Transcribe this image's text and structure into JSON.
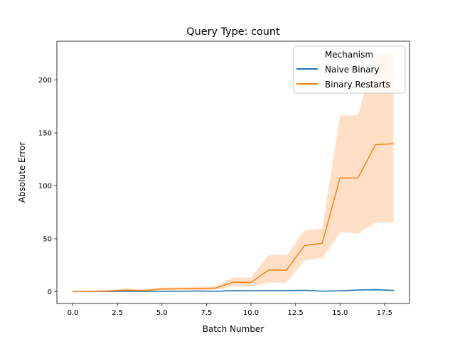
{
  "chart_data": {
    "type": "line",
    "title": "Query Type: count",
    "xlabel": "Batch Number",
    "ylabel": "Absolute Error",
    "xlim": [
      -0.9,
      18.9
    ],
    "ylim": [
      -11.2,
      236.6
    ],
    "x_ticks": [
      0,
      2.5,
      5,
      7.5,
      10,
      12.5,
      15,
      17.5
    ],
    "x_tick_labels": [
      "0.0",
      "2.5",
      "5.0",
      "7.5",
      "10.0",
      "12.5",
      "15.0",
      "17.5"
    ],
    "y_ticks": [
      0,
      50,
      100,
      150,
      200
    ],
    "y_tick_labels": [
      "0",
      "50",
      "100",
      "150",
      "200"
    ],
    "grid": false,
    "legend": {
      "title": "Mechanism",
      "placement": "top-right"
    },
    "x": [
      0,
      1,
      2,
      3,
      4,
      5,
      6,
      7,
      8,
      9,
      10,
      11,
      12,
      13,
      14,
      15,
      16,
      17,
      18
    ],
    "series": [
      {
        "name": "Naive Binary",
        "color": "#1f77b4",
        "values": [
          0,
          0.2,
          0.2,
          0.3,
          0.2,
          0.3,
          0.3,
          0.6,
          0.4,
          0.9,
          0.8,
          1.0,
          1.0,
          1.2,
          0.5,
          0.8,
          1.5,
          1.8,
          1.2
        ],
        "ci_low": [
          0,
          0,
          0,
          0,
          0,
          0,
          0,
          0,
          0,
          0.3,
          0.3,
          0.4,
          0.4,
          0.5,
          0,
          0.2,
          0.6,
          0.8,
          0.5
        ],
        "ci_high": [
          0.3,
          0.5,
          0.5,
          0.7,
          0.5,
          0.7,
          0.7,
          1.2,
          0.9,
          1.6,
          1.4,
          1.7,
          1.7,
          2.0,
          1.1,
          1.5,
          2.5,
          2.9,
          2.0
        ]
      },
      {
        "name": "Binary Restarts",
        "color": "#ff7f0e",
        "band_color": "#ffe0c7",
        "values": [
          0,
          0.3,
          0.6,
          1.5,
          1.0,
          2.5,
          2.7,
          3.0,
          3.3,
          9.0,
          8.5,
          20.5,
          20.3,
          43.5,
          45.7,
          107.5,
          107.3,
          139.0,
          139.7
        ],
        "ci_low": [
          0,
          0,
          0,
          0.5,
          0.3,
          1.2,
          1.3,
          1.6,
          1.8,
          5.0,
          4.8,
          8.5,
          8.3,
          29.5,
          31.5,
          56.0,
          55.0,
          65.0,
          65.0
        ],
        "ci_high": [
          0.5,
          0.8,
          1.5,
          2.8,
          2.2,
          3.8,
          4.1,
          4.5,
          4.8,
          13.5,
          13.2,
          35.0,
          34.5,
          58.0,
          59.5,
          166.5,
          166.5,
          225.0,
          225.0
        ]
      }
    ]
  }
}
